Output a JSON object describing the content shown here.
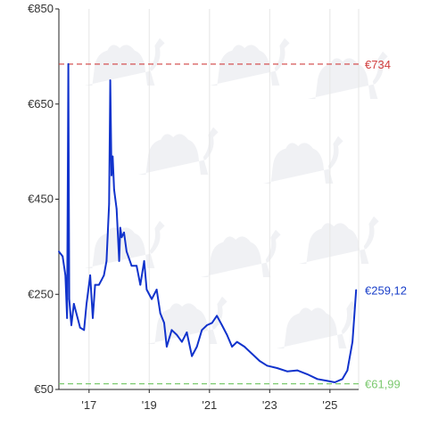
{
  "chart_data": {
    "type": "line",
    "title": "",
    "xlabel": "",
    "ylabel": "",
    "x_ticks": [
      "'17",
      "'19",
      "'21",
      "'23",
      "'25"
    ],
    "y_ticks": [
      "€50",
      "€250",
      "€450",
      "€650",
      "€850"
    ],
    "ylim": [
      50,
      850
    ],
    "xlim": [
      "2016-01-01",
      "2025-12-15"
    ],
    "grid": "vertical",
    "reference_lines": [
      {
        "label": "€734",
        "value": 734,
        "color": "#d14040",
        "style": "dashed"
      },
      {
        "label": "€61,99",
        "value": 61.99,
        "color": "#7bc96f",
        "style": "dashed"
      }
    ],
    "current": {
      "label": "€259,12",
      "value": 259.12,
      "color": "#1a3fc9"
    },
    "series": [
      {
        "color": "#1133cc",
        "points": [
          [
            "2016-01-01",
            340
          ],
          [
            "2016-02-15",
            330
          ],
          [
            "2016-03-20",
            290
          ],
          [
            "2016-04-10",
            200
          ],
          [
            "2016-04-25",
            734
          ],
          [
            "2016-05-05",
            240
          ],
          [
            "2016-06-01",
            185
          ],
          [
            "2016-07-01",
            230
          ],
          [
            "2016-08-15",
            200
          ],
          [
            "2016-09-15",
            180
          ],
          [
            "2016-11-01",
            175
          ],
          [
            "2016-12-01",
            230
          ],
          [
            "2017-01-15",
            290
          ],
          [
            "2017-02-15",
            200
          ],
          [
            "2017-03-15",
            270
          ],
          [
            "2017-05-01",
            270
          ],
          [
            "2017-06-01",
            280
          ],
          [
            "2017-07-01",
            290
          ],
          [
            "2017-08-01",
            320
          ],
          [
            "2017-09-01",
            440
          ],
          [
            "2017-09-15",
            700
          ],
          [
            "2017-10-01",
            500
          ],
          [
            "2017-10-15",
            540
          ],
          [
            "2017-11-01",
            470
          ],
          [
            "2017-12-01",
            430
          ],
          [
            "2018-01-01",
            320
          ],
          [
            "2018-01-15",
            390
          ],
          [
            "2018-02-01",
            370
          ],
          [
            "2018-03-01",
            380
          ],
          [
            "2018-04-01",
            340
          ],
          [
            "2018-06-01",
            310
          ],
          [
            "2018-08-01",
            310
          ],
          [
            "2018-09-15",
            270
          ],
          [
            "2018-11-01",
            320
          ],
          [
            "2018-12-01",
            260
          ],
          [
            "2019-02-01",
            240
          ],
          [
            "2019-04-01",
            260
          ],
          [
            "2019-05-15",
            210
          ],
          [
            "2019-07-01",
            190
          ],
          [
            "2019-08-01",
            140
          ],
          [
            "2019-10-01",
            175
          ],
          [
            "2019-12-01",
            165
          ],
          [
            "2020-02-01",
            150
          ],
          [
            "2020-04-01",
            170
          ],
          [
            "2020-06-01",
            120
          ],
          [
            "2020-08-01",
            140
          ],
          [
            "2020-10-01",
            175
          ],
          [
            "2020-12-01",
            185
          ],
          [
            "2021-02-01",
            190
          ],
          [
            "2021-04-01",
            205
          ],
          [
            "2021-06-01",
            185
          ],
          [
            "2021-08-01",
            165
          ],
          [
            "2021-10-01",
            140
          ],
          [
            "2021-12-01",
            150
          ],
          [
            "2022-03-01",
            140
          ],
          [
            "2022-06-01",
            125
          ],
          [
            "2022-09-01",
            110
          ],
          [
            "2022-12-01",
            100
          ],
          [
            "2023-04-01",
            95
          ],
          [
            "2023-08-01",
            88
          ],
          [
            "2023-12-01",
            90
          ],
          [
            "2024-04-01",
            82
          ],
          [
            "2024-08-01",
            72
          ],
          [
            "2024-12-01",
            68
          ],
          [
            "2025-03-01",
            65
          ],
          [
            "2025-06-01",
            72
          ],
          [
            "2025-08-01",
            90
          ],
          [
            "2025-10-01",
            150
          ],
          [
            "2025-11-15",
            259.12
          ]
        ]
      }
    ]
  }
}
